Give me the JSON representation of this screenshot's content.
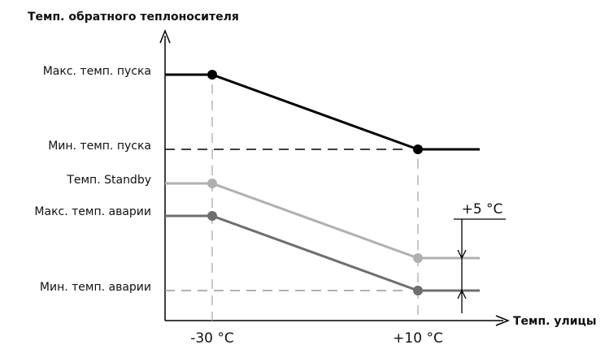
{
  "chart_data": {
    "type": "line",
    "title": "",
    "ylabel": "Темп. обратного теплоносителя",
    "xlabel": "Темп. улицы",
    "x_ticks": [
      {
        "x": -30,
        "label": "-30 °C"
      },
      {
        "x": 10,
        "label": "+10 °C"
      }
    ],
    "y_levels": [
      {
        "key": "max_start",
        "label": "Макс. темп. пуска"
      },
      {
        "key": "min_start",
        "label": "Мин. темп. пуска"
      },
      {
        "key": "standby",
        "label": "Темп. Standby"
      },
      {
        "key": "max_alarm",
        "label": "Макс. темп. аварии"
      },
      {
        "key": "min_alarm",
        "label": "Мин. темп. аварии"
      }
    ],
    "series": [
      {
        "color": "#000000",
        "points": [
          {
            "x": -30,
            "level": "max_start"
          },
          {
            "x": 10,
            "level": "min_start"
          }
        ]
      },
      {
        "color": "#b0b0b0",
        "points": [
          {
            "x": -30,
            "level": "standby"
          },
          {
            "x": 10,
            "level": "standby_low"
          }
        ]
      },
      {
        "color": "#6e6e6e",
        "points": [
          {
            "x": -30,
            "level": "max_alarm"
          },
          {
            "x": 10,
            "level": "min_alarm"
          }
        ]
      }
    ],
    "annotation": {
      "label": "+5 °C"
    },
    "grid": false
  }
}
